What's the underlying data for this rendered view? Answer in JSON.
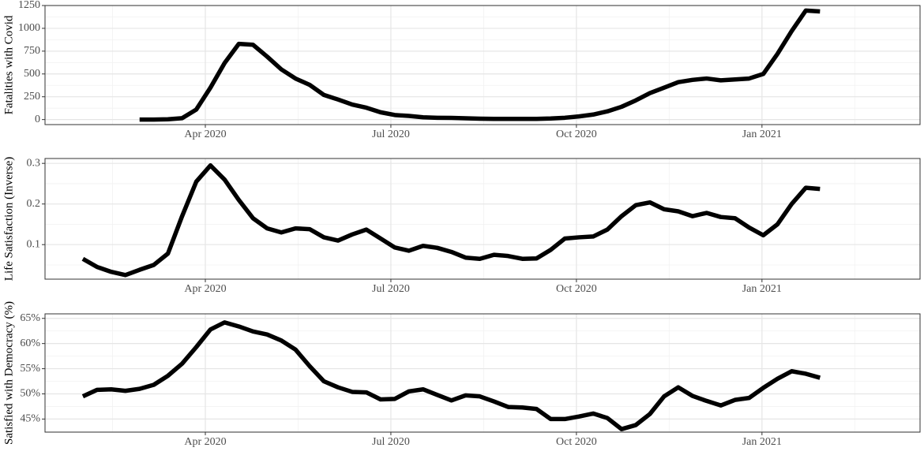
{
  "chart_data": [
    {
      "type": "line",
      "ylabel": "Fatalities with Covid",
      "color": "#000000",
      "grid": true,
      "x": [
        2020.085,
        2020.1041,
        2020.1232,
        2020.1423,
        2020.1614,
        2020.1805,
        2020.1996,
        2020.2187,
        2020.2378,
        2020.2569,
        2020.276,
        2020.2951,
        2020.3142,
        2020.3333,
        2020.3524,
        2020.3715,
        2020.3906,
        2020.4097,
        2020.4288,
        2020.4479,
        2020.467,
        2020.4861,
        2020.5052,
        2020.5243,
        2020.5434,
        2020.5625,
        2020.5816,
        2020.6007,
        2020.6198,
        2020.6389,
        2020.658,
        2020.6771,
        2020.6962,
        2020.7153,
        2020.7344,
        2020.7535,
        2020.7726,
        2020.7917,
        2020.8108,
        2020.8299,
        2020.849,
        2020.8681,
        2020.8872,
        2020.9063,
        2020.9254,
        2020.9445,
        2020.9636,
        2020.9827,
        2021.0018,
        2021.0209,
        2021.04,
        2021.0591,
        2021.0782
      ],
      "values": [
        null,
        null,
        null,
        null,
        0,
        0,
        3,
        15,
        110,
        350,
        620,
        830,
        820,
        690,
        550,
        450,
        380,
        270,
        220,
        165,
        130,
        80,
        50,
        40,
        25,
        20,
        18,
        14,
        10,
        8,
        8,
        8,
        8,
        12,
        20,
        35,
        55,
        90,
        140,
        210,
        290,
        350,
        410,
        435,
        450,
        430,
        440,
        450,
        500,
        720,
        970,
        1195,
        1185
      ],
      "xlim": [
        2020.034,
        2021.213
      ],
      "xticks": [
        {
          "value": 2020.25,
          "label": "Apr 2020"
        },
        {
          "value": 2020.5,
          "label": "Jul 2020"
        },
        {
          "value": 2020.75,
          "label": "Oct 2020"
        },
        {
          "value": 2021.0,
          "label": "Jan 2021"
        }
      ],
      "ylim": [
        -55,
        1250
      ],
      "yticks": [
        0,
        250,
        500,
        750,
        1000,
        1250
      ]
    },
    {
      "type": "line",
      "ylabel": "Life Satisfaction (Inverse)",
      "color": "#000000",
      "grid": true,
      "x": [
        2020.085,
        2020.1041,
        2020.1232,
        2020.1423,
        2020.1614,
        2020.1805,
        2020.1996,
        2020.2187,
        2020.2378,
        2020.2569,
        2020.276,
        2020.2951,
        2020.3142,
        2020.3333,
        2020.3524,
        2020.3715,
        2020.3906,
        2020.4097,
        2020.4288,
        2020.4479,
        2020.467,
        2020.4861,
        2020.5052,
        2020.5243,
        2020.5434,
        2020.5625,
        2020.5816,
        2020.6007,
        2020.6198,
        2020.6389,
        2020.658,
        2020.6771,
        2020.6962,
        2020.7153,
        2020.7344,
        2020.7535,
        2020.7726,
        2020.7917,
        2020.8108,
        2020.8299,
        2020.849,
        2020.8681,
        2020.8872,
        2020.9063,
        2020.9254,
        2020.9445,
        2020.9636,
        2020.9827,
        2021.0018,
        2021.0209,
        2021.04,
        2021.0591,
        2021.0782
      ],
      "values": [
        0.065,
        0.045,
        0.033,
        0.025,
        0.038,
        0.05,
        0.078,
        0.17,
        0.255,
        0.295,
        0.26,
        0.21,
        0.165,
        0.14,
        0.13,
        0.14,
        0.138,
        0.118,
        0.11,
        0.125,
        0.137,
        0.115,
        0.093,
        0.085,
        0.097,
        0.092,
        0.082,
        0.068,
        0.065,
        0.075,
        0.072,
        0.065,
        0.066,
        0.087,
        0.115,
        0.118,
        0.12,
        0.137,
        0.17,
        0.197,
        0.204,
        0.187,
        0.182,
        0.17,
        0.178,
        0.168,
        0.165,
        0.142,
        0.123,
        0.15,
        0.2,
        0.24,
        0.237
      ],
      "xlim": [
        2020.034,
        2021.213
      ],
      "xticks": [
        {
          "value": 2020.25,
          "label": "Apr 2020"
        },
        {
          "value": 2020.5,
          "label": "Jul 2020"
        },
        {
          "value": 2020.75,
          "label": "Oct 2020"
        },
        {
          "value": 2021.0,
          "label": "Jan 2021"
        }
      ],
      "ylim": [
        0.015,
        0.312
      ],
      "yticks": [
        0.1,
        0.2,
        0.3
      ]
    },
    {
      "type": "line",
      "ylabel": "Satisfied with Democracy (%)",
      "color": "#000000",
      "grid": true,
      "x": [
        2020.085,
        2020.1041,
        2020.1232,
        2020.1423,
        2020.1614,
        2020.1805,
        2020.1996,
        2020.2187,
        2020.2378,
        2020.2569,
        2020.276,
        2020.2951,
        2020.3142,
        2020.3333,
        2020.3524,
        2020.3715,
        2020.3906,
        2020.4097,
        2020.4288,
        2020.4479,
        2020.467,
        2020.4861,
        2020.5052,
        2020.5243,
        2020.5434,
        2020.5625,
        2020.5816,
        2020.6007,
        2020.6198,
        2020.6389,
        2020.658,
        2020.6771,
        2020.6962,
        2020.7153,
        2020.7344,
        2020.7535,
        2020.7726,
        2020.7917,
        2020.8108,
        2020.8299,
        2020.849,
        2020.8681,
        2020.8872,
        2020.9063,
        2020.9254,
        2020.9445,
        2020.9636,
        2020.9827,
        2021.0018,
        2021.0209,
        2021.04,
        2021.0591,
        2021.0782
      ],
      "values": [
        49.5,
        50.8,
        50.9,
        50.6,
        51.0,
        51.8,
        53.6,
        56.0,
        59.3,
        62.8,
        64.2,
        63.4,
        62.4,
        61.8,
        60.6,
        58.8,
        55.5,
        52.5,
        51.3,
        50.4,
        50.3,
        48.9,
        49.0,
        50.5,
        50.9,
        49.8,
        48.7,
        49.7,
        49.5,
        48.5,
        47.4,
        47.3,
        47.0,
        45.0,
        45.0,
        45.5,
        46.1,
        45.2,
        43.0,
        43.8,
        46.0,
        49.5,
        51.3,
        49.6,
        48.6,
        47.7,
        48.8,
        49.2,
        51.2,
        53.0,
        54.5,
        54.0,
        53.2
      ],
      "xlim": [
        2020.034,
        2021.213
      ],
      "xticks": [
        {
          "value": 2020.25,
          "label": "Apr 2020"
        },
        {
          "value": 2020.5,
          "label": "Jul 2020"
        },
        {
          "value": 2020.75,
          "label": "Oct 2020"
        },
        {
          "value": 2021.0,
          "label": "Jan 2021"
        }
      ],
      "ylim": [
        42.4,
        65.9
      ],
      "yticks": [
        {
          "value": 45,
          "label": "45%"
        },
        {
          "value": 50,
          "label": "50%"
        },
        {
          "value": 55,
          "label": "55%"
        },
        {
          "value": 60,
          "label": "60%"
        },
        {
          "value": 65,
          "label": "65%"
        }
      ]
    }
  ]
}
